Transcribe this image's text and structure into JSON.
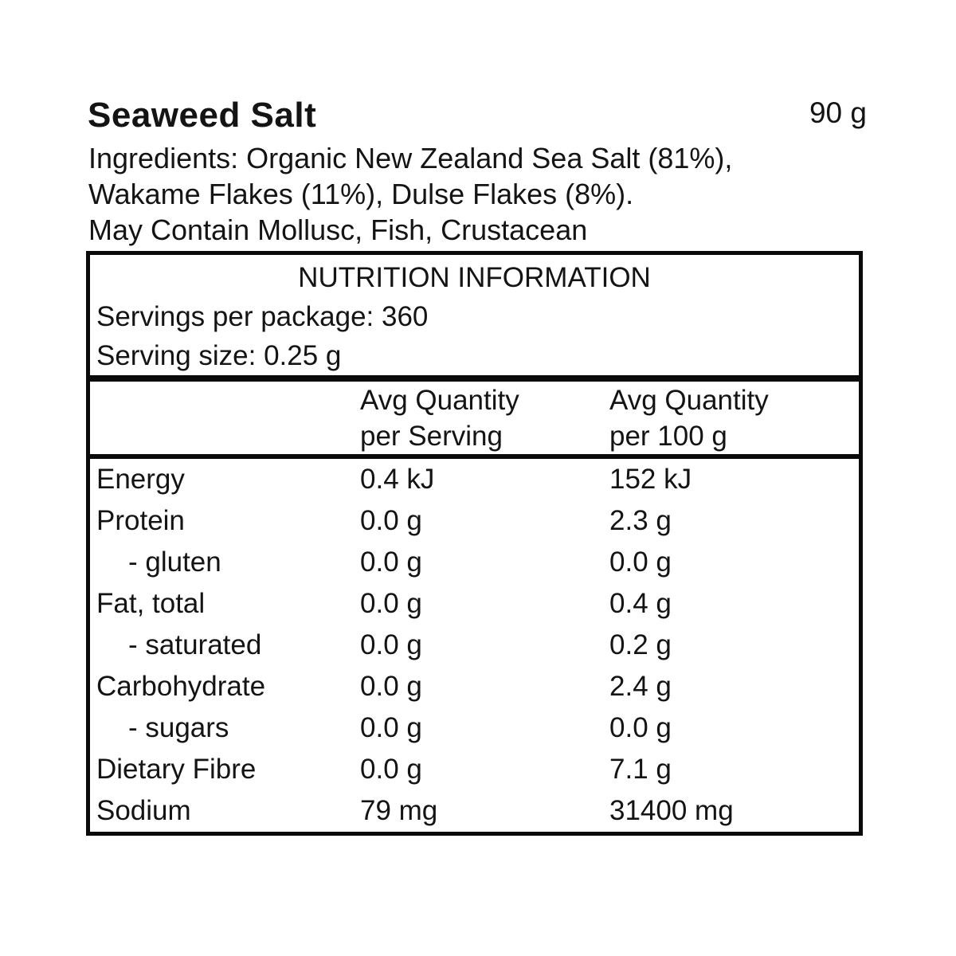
{
  "product": {
    "title": "Seaweed Salt",
    "net_weight": "90 g",
    "ingredients_lines": [
      "Ingredients: Organic New Zealand Sea Salt (81%),",
      "Wakame Flakes (11%), Dulse Flakes (8%).",
      "May Contain Mollusc, Fish, Crustacean"
    ]
  },
  "nutrition": {
    "heading": "NUTRITION INFORMATION",
    "servings_per_package": "Servings per package: 360",
    "serving_size": "Serving size: 0.25 g",
    "columns": {
      "per_serving_line1": "Avg Quantity",
      "per_serving_line2": "per Serving",
      "per_100g_line1": "Avg Quantity",
      "per_100g_line2": "per 100 g"
    },
    "rows": [
      {
        "label": "Energy",
        "per_serving": "0.4 kJ",
        "per_100g": "152 kJ",
        "indent": false
      },
      {
        "label": "Protein",
        "per_serving": "0.0 g",
        "per_100g": "2.3 g",
        "indent": false
      },
      {
        "label": "- gluten",
        "per_serving": "0.0 g",
        "per_100g": "0.0 g",
        "indent": true
      },
      {
        "label": "Fat, total",
        "per_serving": "0.0 g",
        "per_100g": "0.4 g",
        "indent": false
      },
      {
        "label": "- saturated",
        "per_serving": "0.0 g",
        "per_100g": "0.2 g",
        "indent": true
      },
      {
        "label": "Carbohydrate",
        "per_serving": "0.0 g",
        "per_100g": "2.4 g",
        "indent": false
      },
      {
        "label": "- sugars",
        "per_serving": "0.0 g",
        "per_100g": "0.0 g",
        "indent": true
      },
      {
        "label": "Dietary Fibre",
        "per_serving": "0.0 g",
        "per_100g": "7.1 g",
        "indent": false
      },
      {
        "label": "Sodium",
        "per_serving": "79 mg",
        "per_100g": "31400 mg",
        "indent": false
      }
    ],
    "colors": {
      "text": "#141414",
      "border": "#0a0a0a",
      "background": "#ffffff"
    }
  }
}
